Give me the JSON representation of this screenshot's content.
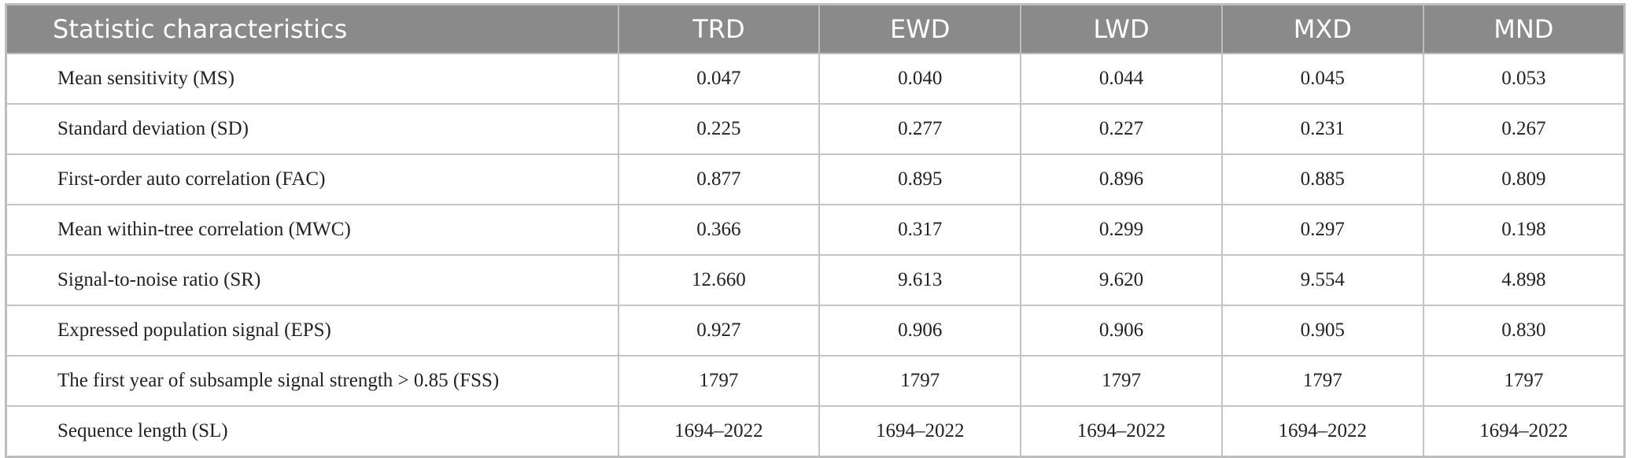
{
  "table": {
    "header": [
      "Statistic characteristics",
      "TRD",
      "EWD",
      "LWD",
      "MXD",
      "MND"
    ],
    "rows": [
      [
        "Mean sensitivity (MS)",
        "0.047",
        "0.040",
        "0.044",
        "0.045",
        "0.053"
      ],
      [
        "Standard deviation (SD)",
        "0.225",
        "0.277",
        "0.227",
        "0.231",
        "0.267"
      ],
      [
        "First-order auto correlation (FAC)",
        "0.877",
        "0.895",
        "0.896",
        "0.885",
        "0.809"
      ],
      [
        "Mean within-tree correlation (MWC)",
        "0.366",
        "0.317",
        "0.299",
        "0.297",
        "0.198"
      ],
      [
        "Signal-to-noise ratio (SR)",
        "12.660",
        "9.613",
        "9.620",
        "9.554",
        "4.898"
      ],
      [
        "Expressed population signal (EPS)",
        "0.927",
        "0.906",
        "0.906",
        "0.905",
        "0.830"
      ],
      [
        "The first year of subsample signal strength > 0.85 (FSS)",
        "1797",
        "1797",
        "1797",
        "1797",
        "1797"
      ],
      [
        "Sequence length (SL)",
        "1694–2022",
        "1694–2022",
        "1694–2022",
        "1694–2022",
        "1694–2022"
      ]
    ]
  }
}
